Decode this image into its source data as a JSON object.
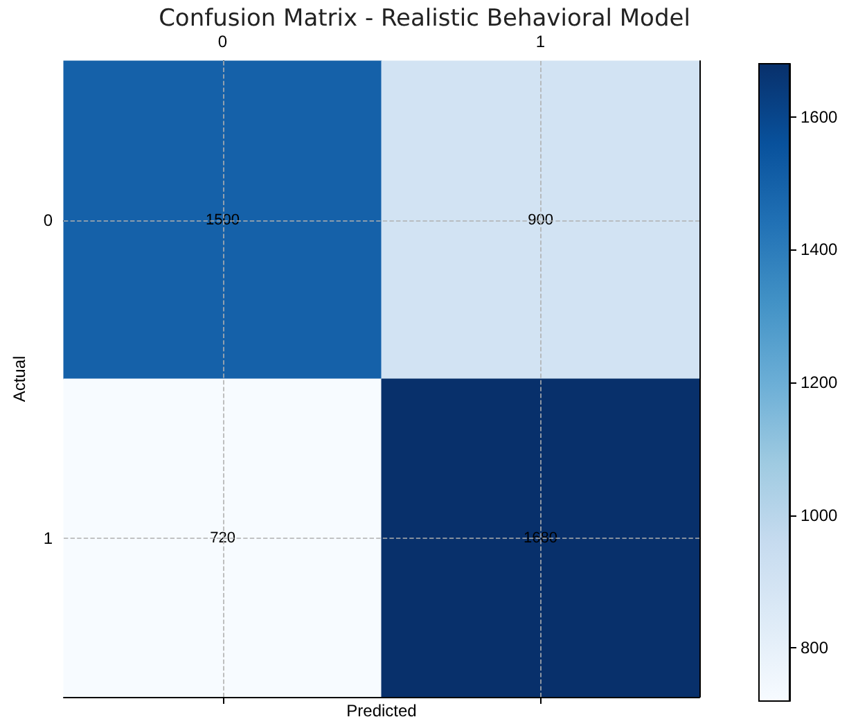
{
  "chart_data": {
    "type": "heatmap",
    "title": "Confusion Matrix - Realistic Behavioral Model",
    "xlabel": "Predicted",
    "ylabel": "Actual",
    "categories": [
      "0",
      "1"
    ],
    "y_categories": [
      "0",
      "1"
    ],
    "cells": [
      [
        1500,
        900
      ],
      [
        720,
        1680
      ]
    ],
    "data_labels": true,
    "clim": [
      720,
      1680
    ],
    "cticks": [
      800,
      1000,
      1200,
      1400,
      1600
    ],
    "grid": true
  }
}
